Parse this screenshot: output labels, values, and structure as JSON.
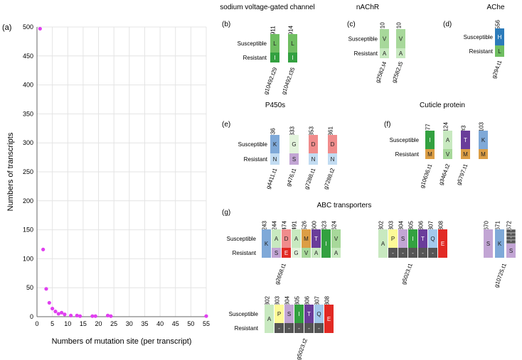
{
  "chart_data": {
    "type": "scatter",
    "panel": "(a)",
    "xlabel": "Numbers of mutation site (per transcript)",
    "ylabel": "Numbers of transcripts",
    "xlim": [
      0,
      55
    ],
    "ylim": [
      0,
      500
    ],
    "xticks": [
      0,
      5,
      10,
      15,
      20,
      25,
      30,
      35,
      40,
      45,
      50,
      55
    ],
    "yticks": [
      0,
      50,
      100,
      150,
      200,
      250,
      300,
      350,
      400,
      450,
      500
    ],
    "grid": true,
    "color": "#e040f0",
    "points": [
      [
        1,
        497
      ],
      [
        2,
        116
      ],
      [
        3,
        48
      ],
      [
        4,
        24
      ],
      [
        5,
        14
      ],
      [
        6,
        9
      ],
      [
        7,
        5
      ],
      [
        8,
        7
      ],
      [
        9,
        4
      ],
      [
        11,
        2
      ],
      [
        13,
        2
      ],
      [
        14,
        1
      ],
      [
        18,
        1
      ],
      [
        19,
        1
      ],
      [
        23,
        2
      ],
      [
        24,
        1
      ],
      [
        55,
        1
      ]
    ]
  },
  "colors": {
    "L": "#6fbe61",
    "I": "#33a140",
    "V": "#a7d89a",
    "A": "#c8e9c0",
    "H": "#2c7bba",
    "K": "#7fa9d8",
    "N": "#c2dcf2",
    "G": "#e3f3dc",
    "S": "#c2a5d4",
    "D": "#f08c8c",
    "E": "#e22a24",
    "M": "#dc9e45",
    "T": "#6a3d9a",
    "P": "#fdfa97",
    "Q": "#a3c8ec",
    "dash": "#555555"
  },
  "labels": {
    "susceptible": "Susceptible",
    "resistant": "Resistant"
  },
  "panels": [
    {
      "id": "(b)",
      "title": "sodium voltage-gated channel",
      "cols": [
        {
          "pos": "#911",
          "top": "L",
          "bot": "I",
          "gene": "g10492.t29"
        },
        {
          "pos": "#914",
          "top": "L",
          "bot": "I",
          "gene": "g10492.t35"
        }
      ]
    },
    {
      "id": "(c)",
      "title": "nAChR",
      "cols": [
        {
          "pos": "#10",
          "top": "V",
          "bot": "A",
          "gene": "g2582.t4"
        },
        {
          "pos": "#10",
          "top": "V",
          "bot": "A",
          "gene": "g2582.t5"
        }
      ]
    },
    {
      "id": "(d)",
      "title": "AChe",
      "cols": [
        {
          "pos": "#556",
          "top": "H",
          "bot": "L",
          "gene": "g294.t1"
        }
      ]
    },
    {
      "id": "(e)",
      "title": "P450s",
      "cols": [
        {
          "pos": "#36",
          "top": "K",
          "bot": "N",
          "gene": "g4411.t1"
        },
        {
          "pos": "#333",
          "top": "G",
          "bot": "S",
          "gene": "g476.t1"
        },
        {
          "pos": "#353",
          "top": "D",
          "bot": "N",
          "gene": "g7288.t1"
        },
        {
          "pos": "#361",
          "top": "D",
          "bot": "N",
          "gene": "g7288.t2"
        }
      ]
    },
    {
      "id": "(f)",
      "title": "Cuticle protein",
      "cols": [
        {
          "pos": "#77",
          "top": "I",
          "bot": "M",
          "gene": "g10636.t1"
        },
        {
          "pos": "#124",
          "top": "A",
          "bot": "V",
          "gene": "g3464.t2"
        },
        {
          "pos": "#3",
          "top": "T",
          "bot": "M",
          "gene": "g5797.t1"
        },
        {
          "pos": "#103",
          "top": "K",
          "bot": "M",
          "gene": ""
        }
      ]
    },
    {
      "id": "(g)",
      "title": "ABC transporters",
      "groups": [
        {
          "gene": "g2658.t1",
          "cols": [
            {
              "pos": "#243",
              "top": "K",
              "bot": "K",
              "merged": true
            },
            {
              "pos": "#244",
              "top": "A",
              "bot": "S"
            },
            {
              "pos": "#474",
              "top": "D",
              "bot": "E"
            },
            {
              "pos": "#491",
              "top": "A",
              "bot": "G"
            },
            {
              "pos": "#526",
              "top": "M",
              "bot": "V"
            },
            {
              "pos": "#600",
              "top": "T",
              "bot": "A"
            },
            {
              "pos": "#623",
              "top": "I",
              "bot": "I",
              "merged": true
            },
            {
              "pos": "#624",
              "top": "V",
              "bot": "A"
            }
          ]
        },
        {
          "gene": "g5023.t1",
          "cols": [
            {
              "pos": "#302",
              "top": "A",
              "bot": "A",
              "merged": true
            },
            {
              "pos": "#303",
              "top": "P",
              "bot": "-"
            },
            {
              "pos": "#304",
              "top": "S",
              "bot": "-"
            },
            {
              "pos": "#305",
              "top": "I",
              "bot": "-"
            },
            {
              "pos": "#306",
              "top": "T",
              "bot": "-"
            },
            {
              "pos": "#307",
              "top": "Q",
              "bot": "-"
            },
            {
              "pos": "#308",
              "top": "E",
              "bot": "E",
              "merged": true
            }
          ]
        },
        {
          "gene": "g10725.t1",
          "cols": [
            {
              "pos": "#670",
              "top": "S",
              "bot": "S",
              "merged": true
            },
            {
              "pos": "#671",
              "top": "K",
              "bot": "K",
              "merged": true
            },
            {
              "pos": "#672",
              "top": "-",
              "bot": "S",
              "dashstack": true
            }
          ]
        },
        {
          "gene": "g5023.t2",
          "cols": [
            {
              "pos": "#302",
              "top": "A",
              "bot": "A",
              "merged": true
            },
            {
              "pos": "#303",
              "top": "P",
              "bot": "-"
            },
            {
              "pos": "#304",
              "top": "S",
              "bot": "-"
            },
            {
              "pos": "#305",
              "top": "I",
              "bot": "-"
            },
            {
              "pos": "#306",
              "top": "T",
              "bot": "-"
            },
            {
              "pos": "#307",
              "top": "Q",
              "bot": "-"
            },
            {
              "pos": "#308",
              "top": "E",
              "bot": "E",
              "merged": true
            }
          ]
        }
      ]
    }
  ]
}
